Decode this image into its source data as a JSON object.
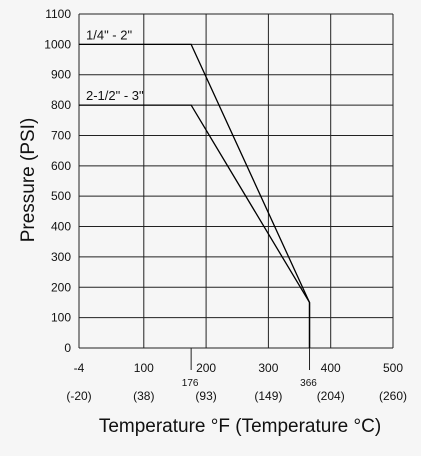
{
  "chart_data": {
    "type": "line",
    "xlabel": "Temperature °F (Temperature °C)",
    "ylabel": "Pressure (PSI)",
    "xlim": [
      -4,
      500
    ],
    "ylim": [
      0,
      1100
    ],
    "grid": true,
    "x_ticks": [
      {
        "value": -4,
        "label": "-4",
        "celsius": "(-20)"
      },
      {
        "value": 100,
        "label": "100",
        "celsius": "(38)"
      },
      {
        "value": 200,
        "label": "200",
        "celsius": "(93)"
      },
      {
        "value": 300,
        "label": "300",
        "celsius": "(149)"
      },
      {
        "value": 400,
        "label": "400",
        "celsius": "(204)"
      },
      {
        "value": 500,
        "label": "500",
        "celsius": "(260)"
      }
    ],
    "y_ticks": [
      0,
      100,
      200,
      300,
      400,
      500,
      600,
      700,
      800,
      900,
      1000,
      1100
    ],
    "annotations": [
      {
        "x": 176,
        "label": "176"
      },
      {
        "x": 366,
        "label": "366"
      }
    ],
    "series": [
      {
        "name": "1/4\" - 2\"",
        "x": [
          -4,
          176,
          366,
          366
        ],
        "y": [
          1000,
          1000,
          150,
          0
        ]
      },
      {
        "name": "2-1/2\" - 3\"",
        "x": [
          -4,
          176,
          366,
          366
        ],
        "y": [
          800,
          800,
          150,
          0
        ]
      }
    ]
  }
}
